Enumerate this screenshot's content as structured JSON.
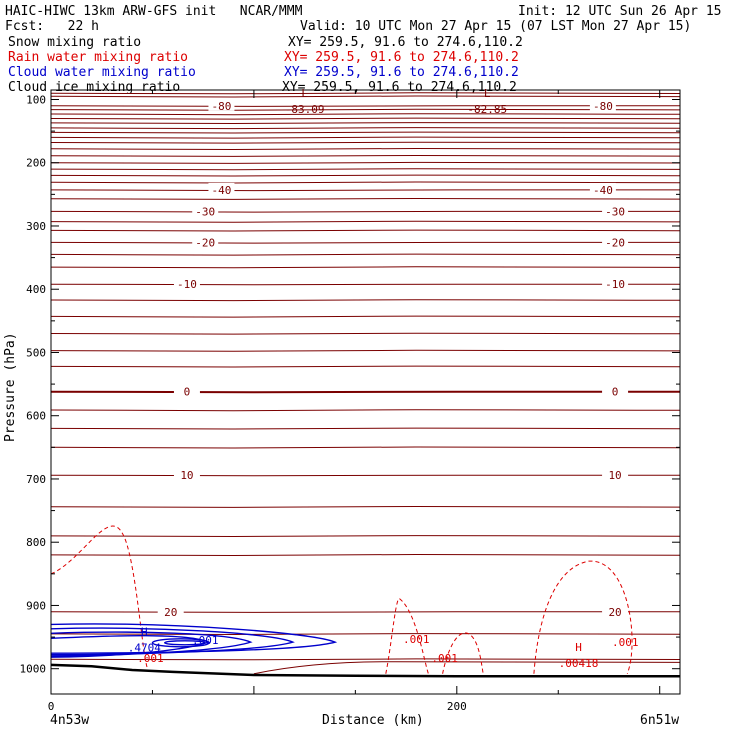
{
  "header": {
    "line1_left": "HAIC-HIWC 13km ARW-GFS init   NCAR/MMM",
    "line1_right": "Init: 12 UTC Sun 26 Apr 15",
    "fcst": "Fcst:   22 h",
    "valid": "Valid: 10 UTC Mon 27 Apr 15 (07 LST Mon 27 Apr 15)"
  },
  "legend": [
    {
      "label": "Snow mixing ratio",
      "xy": "XY= 259.5, 91.6 to 274.6,110.2",
      "color": "#000000"
    },
    {
      "label": "Rain water mixing ratio",
      "xy": "XY= 259.5, 91.6 to 274.6,110.2",
      "color": "#dd0000"
    },
    {
      "label": "Cloud water mixing ratio",
      "xy": "XY= 259.5, 91.6 to 274.6,110.2",
      "color": "#0000cc"
    },
    {
      "label": "Cloud ice mixing ratio",
      "xy": "XY= 259.5, 91.6 to 274.6,110.2",
      "color": "#000000"
    }
  ],
  "colors": {
    "temperature": "#7a0000",
    "rain": "#dd0000",
    "cloud_water": "#0000cc",
    "ground": "#000000"
  },
  "chart_data": {
    "type": "line",
    "title": "",
    "xlabel": "Distance (km)",
    "ylabel": "Pressure (hPa)",
    "xlim": [
      0,
      310
    ],
    "ylim": [
      1040,
      85
    ],
    "x_ticks": [
      0,
      200
    ],
    "y_ticks": [
      100,
      200,
      300,
      400,
      500,
      600,
      700,
      800,
      900,
      1000
    ],
    "x_endpoints": {
      "left": "4n53w",
      "right": "6n51w"
    },
    "temperature_levels": [
      {
        "label": "-80",
        "p": 110
      },
      {
        "label": "-40",
        "p": 243
      },
      {
        "label": "-30",
        "p": 277
      },
      {
        "label": "-20",
        "p": 326
      },
      {
        "label": "-10",
        "p": 392
      },
      {
        "label": "0",
        "p": 562
      },
      {
        "label": "10",
        "p": 694
      },
      {
        "label": "20",
        "p": 910
      }
    ],
    "temperature_label_positions_km": {
      "-80": [
        84,
        272
      ],
      "-40": [
        84,
        272
      ],
      "-30": [
        76,
        278
      ],
      "-20": [
        76,
        278
      ],
      "-10": [
        67,
        278
      ],
      "0": [
        67,
        278
      ],
      "10": [
        67,
        278
      ],
      "20": [
        59,
        278
      ]
    },
    "extrema": [
      {
        "kind": "L",
        "x": 125,
        "p": 99,
        "value": "-83.09",
        "color": "#7a0000"
      },
      {
        "kind": "L",
        "x": 215,
        "p": 99,
        "value": "-82.85",
        "color": "#7a0000"
      },
      {
        "kind": "H",
        "x": 46,
        "p": 960,
        "value": ".4704",
        "color": "#0000cc"
      },
      {
        "kind": "H",
        "x": 260,
        "p": 985,
        "value": ".00418",
        "color": "#dd0000"
      }
    ],
    "contour_labels": [
      {
        "text": ".001",
        "x": 76,
        "p": 955,
        "color": "#0000cc"
      },
      {
        "text": ".001",
        "x": 49,
        "p": 983,
        "color": "#dd0000"
      },
      {
        "text": ".001",
        "x": 180,
        "p": 953,
        "color": "#dd0000"
      },
      {
        "text": ".001",
        "x": 194,
        "p": 983,
        "color": "#dd0000"
      },
      {
        "text": ".001",
        "x": 283,
        "p": 958,
        "color": "#dd0000"
      }
    ]
  }
}
